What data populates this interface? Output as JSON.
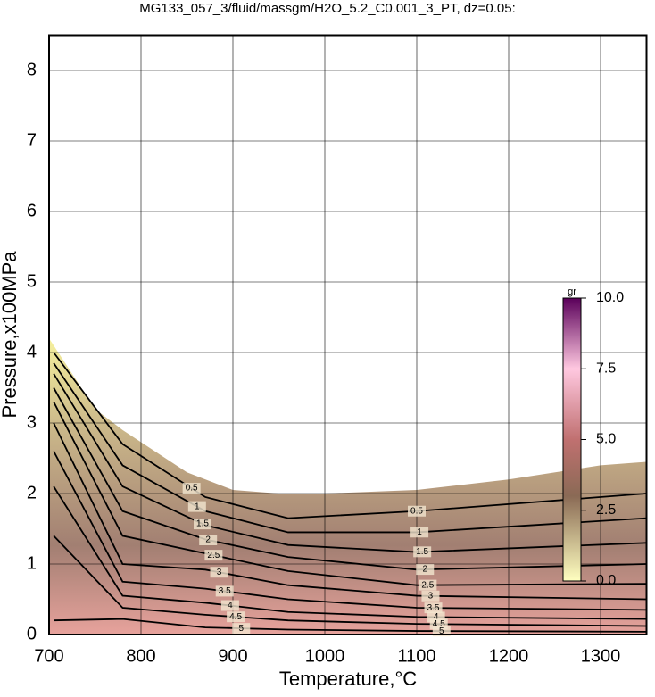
{
  "chart_data": {
    "type": "contour",
    "title": "MG133_057_3/fluid/massgm/H2O_5.2_C0.001_3_PT, dz=0.05:",
    "xlabel": "Temperature,°C",
    "ylabel": "Pressure,x100MPa",
    "xlim": [
      700,
      1350
    ],
    "ylim": [
      0,
      8.5
    ],
    "xticks": [
      700,
      800,
      900,
      1000,
      1100,
      1200,
      1300
    ],
    "yticks": [
      0,
      1,
      2,
      3,
      4,
      5,
      6,
      7,
      8
    ],
    "grid": true,
    "field_boundary": {
      "x": [
        700,
        720,
        750,
        780,
        850,
        900,
        950,
        1000,
        1100,
        1200,
        1300,
        1350
      ],
      "y": [
        4.2,
        3.8,
        3.2,
        2.9,
        2.3,
        2.05,
        2.0,
        2.0,
        2.05,
        2.2,
        2.4,
        2.45
      ]
    },
    "contour_x": [
      705,
      780,
      870,
      960,
      1100,
      1350
    ],
    "contours": [
      {
        "name": "0.5",
        "values": [
          4.0,
          2.7,
          1.95,
          1.65,
          1.75,
          2.0
        ]
      },
      {
        "name": "1",
        "values": [
          3.85,
          2.4,
          1.75,
          1.45,
          1.45,
          1.65
        ]
      },
      {
        "name": "1.5",
        "values": [
          3.7,
          2.1,
          1.55,
          1.27,
          1.17,
          1.3
        ]
      },
      {
        "name": "2",
        "values": [
          3.5,
          1.75,
          1.35,
          1.1,
          0.92,
          1.0
        ]
      },
      {
        "name": "2.5",
        "values": [
          3.3,
          1.4,
          1.15,
          0.9,
          0.7,
          0.72
        ]
      },
      {
        "name": "3",
        "values": [
          3.0,
          1.0,
          0.92,
          0.7,
          0.55,
          0.5
        ]
      },
      {
        "name": "3.5",
        "values": [
          2.6,
          0.75,
          0.65,
          0.5,
          0.38,
          0.35
        ]
      },
      {
        "name": "4",
        "values": [
          2.1,
          0.55,
          0.45,
          0.32,
          0.25,
          0.22
        ]
      },
      {
        "name": "4.5",
        "values": [
          1.4,
          0.38,
          0.28,
          0.2,
          0.15,
          0.12
        ]
      },
      {
        "name": "5",
        "values": [
          0.2,
          0.22,
          0.1,
          0.07,
          0.05,
          0.04
        ]
      }
    ],
    "colorbar": {
      "label": "gr",
      "lim": [
        0,
        10
      ],
      "ticks": [
        {
          "value": 0,
          "label": "0.0"
        },
        {
          "value": 2.5,
          "label": "2.5"
        },
        {
          "value": 5,
          "label": "5.0"
        },
        {
          "value": 7.5,
          "label": "7.5"
        },
        {
          "value": 10,
          "label": "10.0"
        }
      ]
    }
  }
}
